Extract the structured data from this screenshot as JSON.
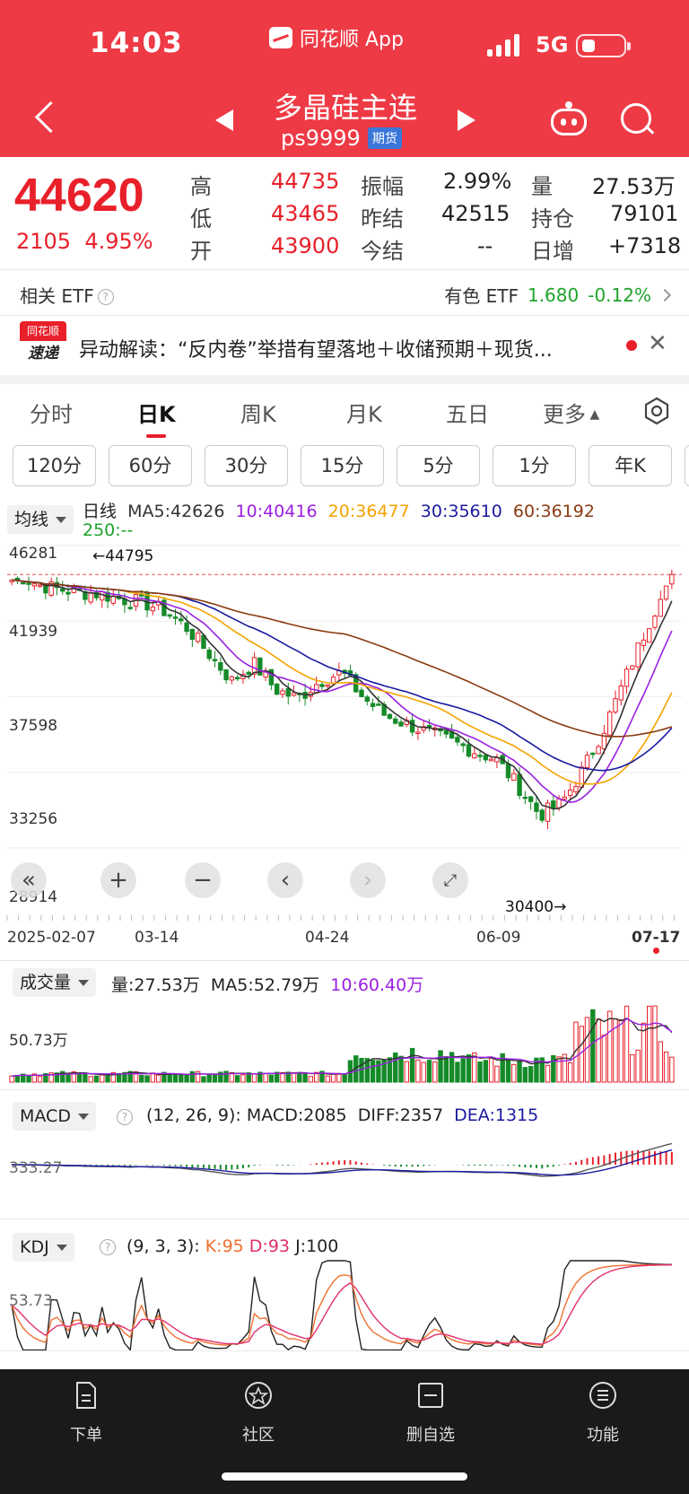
{
  "status": {
    "time": "14:03",
    "app": "同花顺 App",
    "network": "5G"
  },
  "header": {
    "title": "多晶硅主连",
    "code": "ps9999",
    "tag": "期货"
  },
  "quote": {
    "price": "44620",
    "change": "2105",
    "change_pct": "4.95%",
    "items": [
      {
        "label": "高",
        "value": "44735",
        "color": "#e8202a"
      },
      {
        "label": "低",
        "value": "43465",
        "color": "#e8202a"
      },
      {
        "label": "开",
        "value": "43900",
        "color": "#e8202a"
      },
      {
        "label": "振幅",
        "value": "2.99%",
        "color": "#222222"
      },
      {
        "label": "昨结",
        "value": "42515",
        "color": "#222222"
      },
      {
        "label": "今结",
        "value": "--",
        "color": "#222222"
      },
      {
        "label": "量",
        "value": "27.53万",
        "color": "#222222"
      },
      {
        "label": "持仓",
        "value": "79101",
        "color": "#222222"
      },
      {
        "label": "日增",
        "value": "+7318",
        "color": "#222222"
      }
    ]
  },
  "etf": {
    "label": "相关 ETF",
    "name": "有色 ETF",
    "price": "1.680",
    "change": "-0.12%"
  },
  "news": {
    "logo_top": "同花顺",
    "logo_bottom": "速递",
    "text": "异动解读：“反内卷”举措有望落地＋收储预期＋现货..."
  },
  "tabs": [
    "分时",
    "日K",
    "周K",
    "月K",
    "五日",
    "更多"
  ],
  "active_tab": "日K",
  "periods": [
    "120分",
    "60分",
    "30分",
    "15分",
    "5分",
    "1分",
    "年K"
  ],
  "kline": {
    "indicator": "均线",
    "ma_title": "日线",
    "ma5": "MA5:42626",
    "ma10": "10:40416",
    "ma20": "20:36477",
    "ma30": "30:35610",
    "ma60": "60:36192",
    "ma250": "250:--",
    "ma_colors": {
      "ma5": "#333333",
      "ma10": "#9b20e0",
      "ma20": "#f5a300",
      "ma30": "#1a1aa0",
      "ma60": "#8a3a10",
      "ma250": "#1fa32b"
    },
    "y_labels": [
      "46281",
      "41939",
      "37598",
      "33256",
      "28914"
    ],
    "high_mark": "←44795",
    "low_mark": "30400→",
    "x_labels": [
      "2025-02-07",
      "03-14",
      "04-24",
      "06-09",
      "07-17"
    ]
  },
  "volume": {
    "indicator": "成交量",
    "vol": "量:27.53万",
    "ma5": "MA5:52.79万",
    "ma10": "10:60.40万",
    "y_label": "50.73万"
  },
  "macd": {
    "indicator": "MACD",
    "params": "(12, 26, 9):",
    "macd": "MACD:2085",
    "diff": "DIFF:2357",
    "dea": "DEA:1315",
    "y_label": "333.27"
  },
  "kdj": {
    "indicator": "KDJ",
    "params": "(9, 3, 3):",
    "k": "K:95",
    "d": "D:93",
    "j": "J:100",
    "y_label": "53.73"
  },
  "chart_data": {
    "type": "candlestick",
    "x": [
      "2025-02-07",
      "03-14",
      "04-24",
      "06-09",
      "07-17"
    ],
    "close_trend": [
      44300,
      44100,
      43800,
      43600,
      43500,
      43200,
      43000,
      42500,
      41500,
      40000,
      38500,
      39500,
      38000,
      37500,
      38500,
      39000,
      37500,
      36500,
      36000,
      35500,
      35000,
      34500,
      34000,
      32500,
      30800,
      31500,
      33500,
      36000,
      39000,
      42000,
      44620
    ],
    "ylim": [
      28914,
      46281
    ],
    "high": 44795,
    "low": 30400
  },
  "bottom_nav": [
    "下单",
    "社区",
    "删自选",
    "功能"
  ]
}
